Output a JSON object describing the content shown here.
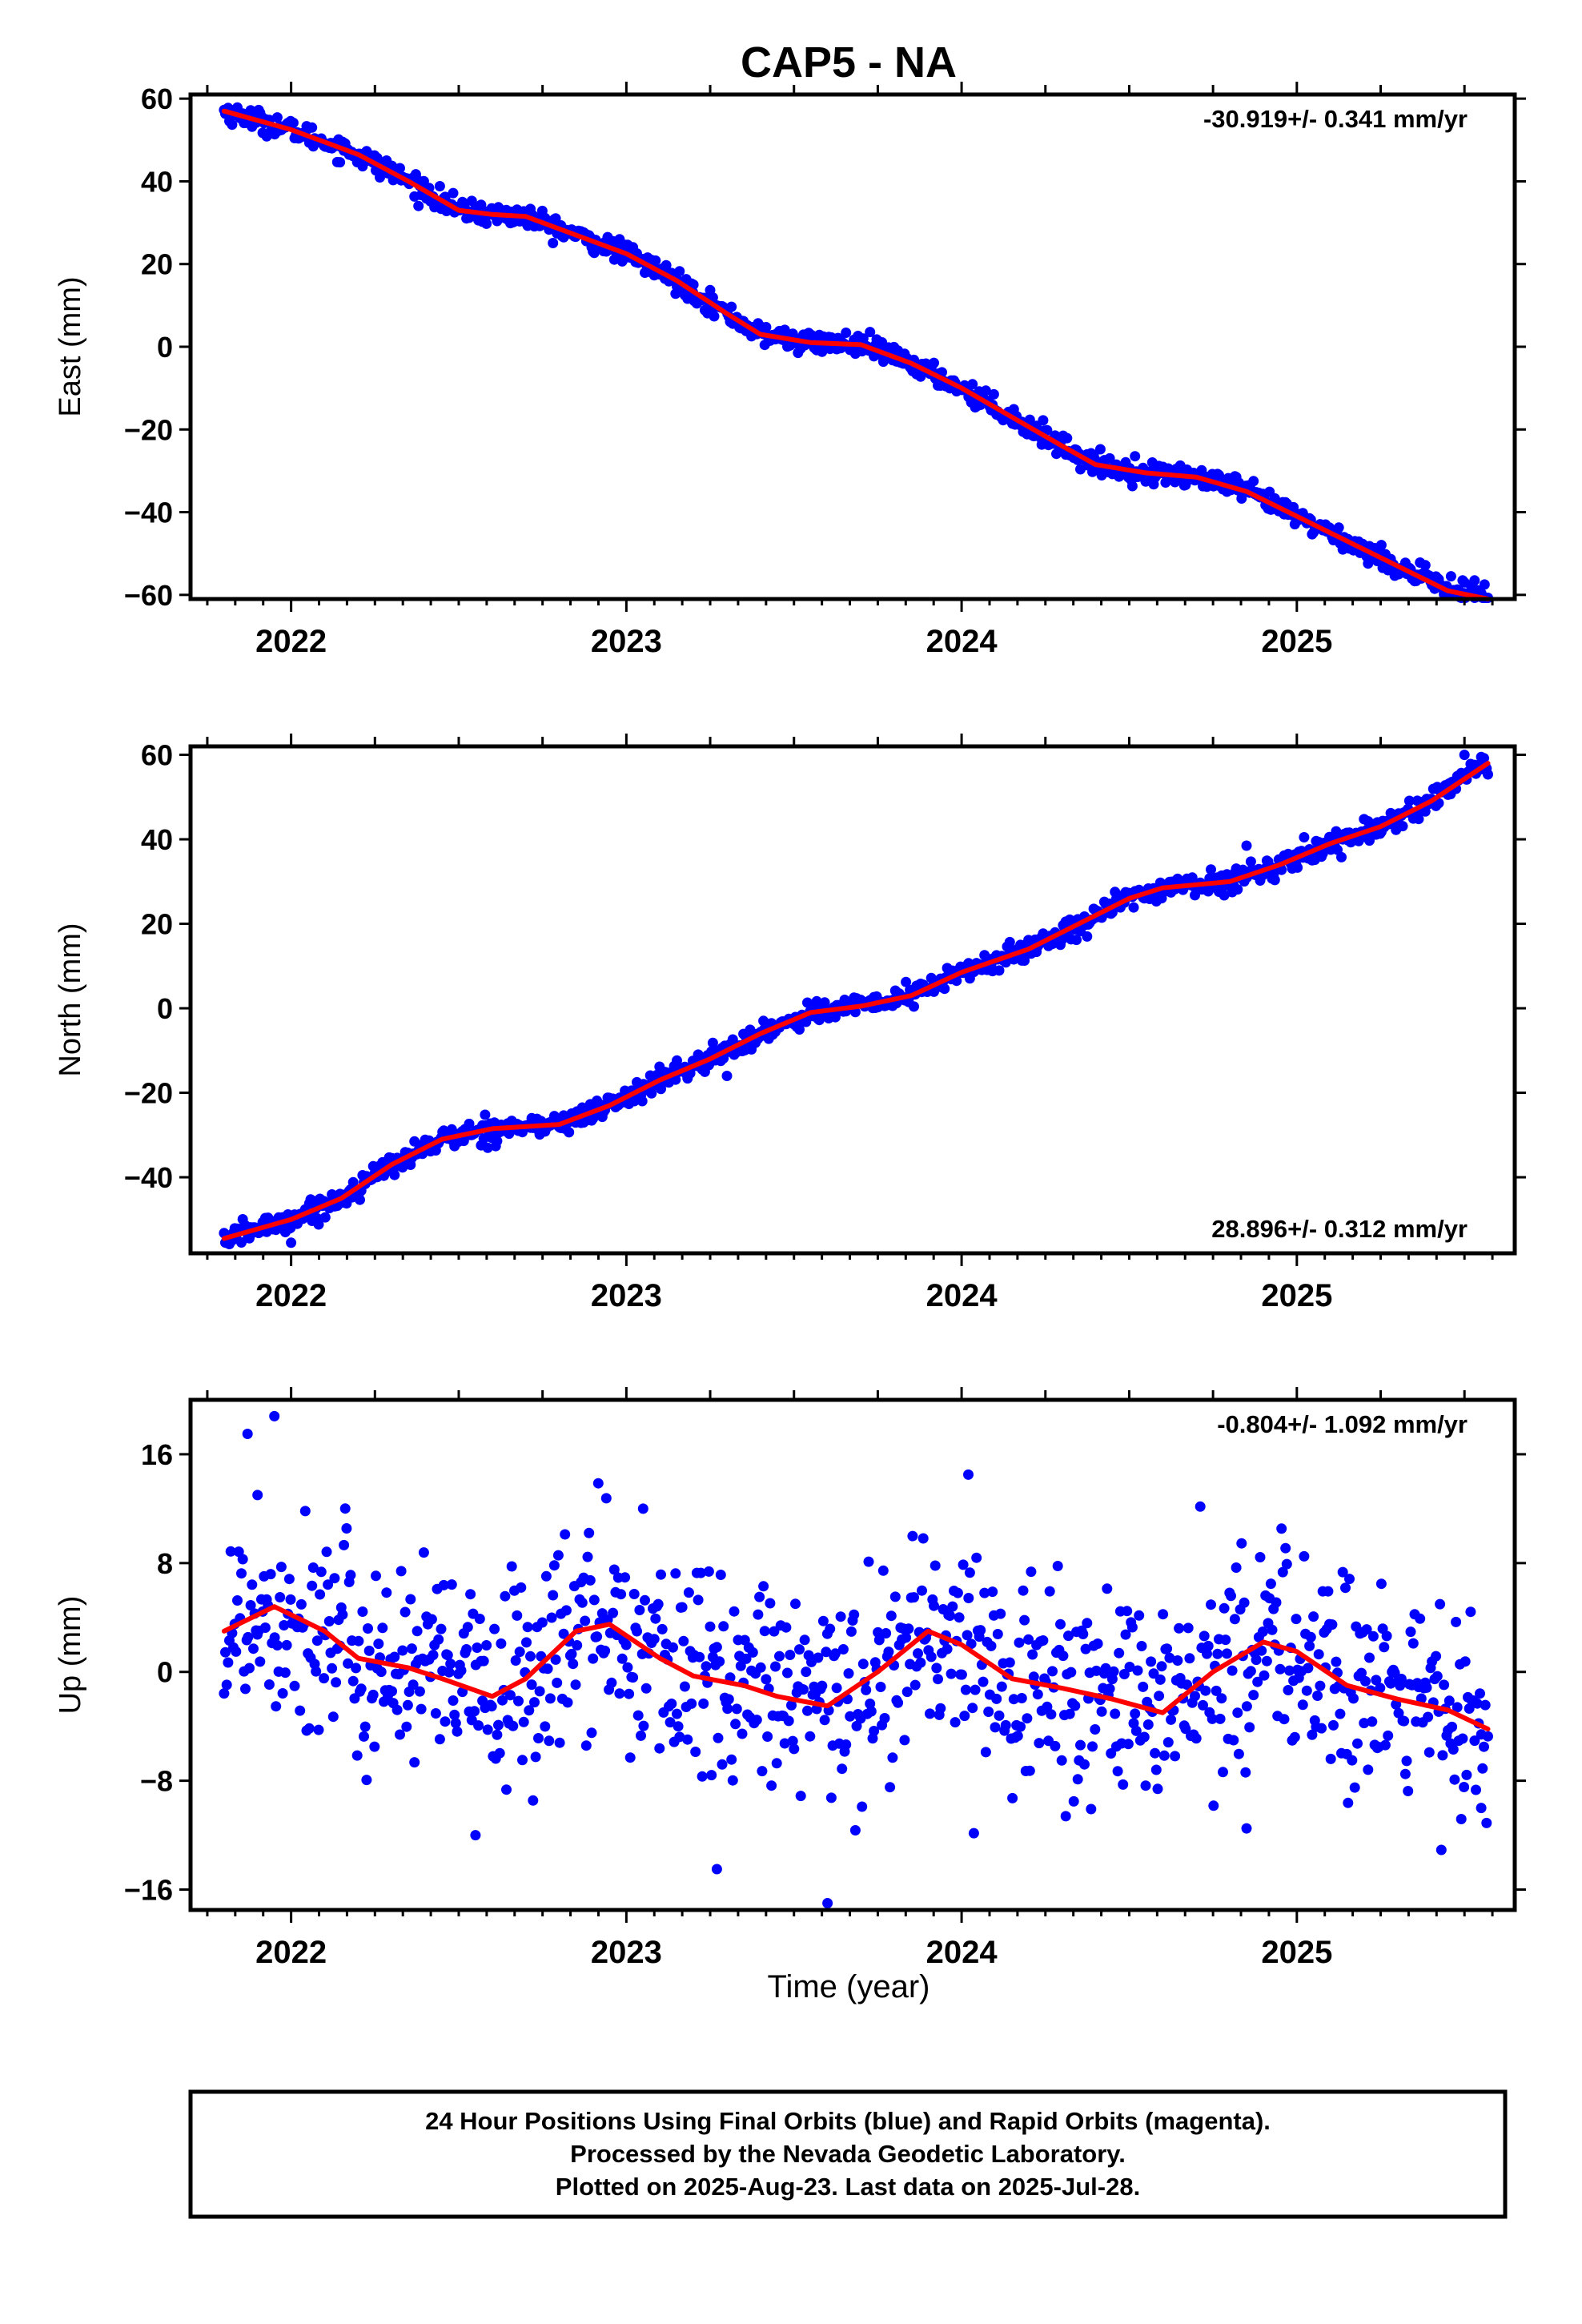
{
  "title": "CAP5 - NA",
  "xlabel": "Time (year)",
  "footer": [
    "24 Hour Positions Using Final Orbits (blue) and Rapid Orbits (magenta).",
    "Processed by the Nevada Geodetic Laboratory.",
    "Plotted on 2025-Aug-23. Last data on 2025-Jul-28."
  ],
  "colors": {
    "points": "#0000ff",
    "fit": "#ff0000",
    "frame": "#000000"
  },
  "chart_data": [
    {
      "type": "scatter",
      "ylabel": "East (mm)",
      "rate_label": "-30.919+/- 0.341 mm/yr",
      "rate_position": "top-right",
      "xlim": [
        2021.7,
        2025.65
      ],
      "ylim": [
        -61,
        61
      ],
      "yticks": [
        -60,
        -40,
        -20,
        0,
        20,
        40,
        60
      ],
      "ytick_labels": [
        "−60",
        "−40",
        "−20",
        "0",
        "20",
        "40",
        "60"
      ],
      "xticks": [
        2022,
        2023,
        2024,
        2025
      ],
      "xtick_labels": [
        "2022",
        "2023",
        "2024",
        "2025"
      ],
      "x_range": [
        2021.8,
        2025.57
      ],
      "scatter_sd": 1.3,
      "fit_points": [
        [
          2021.8,
          57
        ],
        [
          2022.0,
          52.5
        ],
        [
          2022.2,
          46.5
        ],
        [
          2022.35,
          40
        ],
        [
          2022.5,
          33
        ],
        [
          2022.6,
          32
        ],
        [
          2022.7,
          31.5
        ],
        [
          2022.85,
          27
        ],
        [
          2023.0,
          22.5
        ],
        [
          2023.15,
          16
        ],
        [
          2023.3,
          8
        ],
        [
          2023.4,
          3
        ],
        [
          2023.55,
          1
        ],
        [
          2023.7,
          0.5
        ],
        [
          2023.85,
          -4
        ],
        [
          2024.0,
          -10
        ],
        [
          2024.15,
          -17
        ],
        [
          2024.3,
          -24
        ],
        [
          2024.4,
          -28.5
        ],
        [
          2024.55,
          -30.5
        ],
        [
          2024.7,
          -31.5
        ],
        [
          2024.85,
          -35
        ],
        [
          2025.0,
          -41
        ],
        [
          2025.15,
          -47
        ],
        [
          2025.3,
          -53
        ],
        [
          2025.45,
          -59
        ],
        [
          2025.57,
          -61
        ]
      ],
      "outliers": [
        [
          2025.42,
          -56
        ],
        [
          2025.46,
          -55.5
        ],
        [
          2025.5,
          -57
        ],
        [
          2025.53,
          -56.5
        ],
        [
          2025.56,
          -57.5
        ],
        [
          2024.82,
          -34
        ],
        [
          2022.55,
          33.5
        ],
        [
          2023.2,
          15
        ]
      ]
    },
    {
      "type": "scatter",
      "ylabel": "North (mm)",
      "rate_label": "28.896+/- 0.312 mm/yr",
      "rate_position": "bottom-right",
      "xlim": [
        2021.7,
        2025.65
      ],
      "ylim": [
        -58,
        62
      ],
      "yticks": [
        -40,
        -20,
        0,
        20,
        40,
        60
      ],
      "ytick_labels": [
        "−40",
        "−20",
        "0",
        "20",
        "40",
        "60"
      ],
      "xticks": [
        2022,
        2023,
        2024,
        2025
      ],
      "xtick_labels": [
        "2022",
        "2023",
        "2024",
        "2025"
      ],
      "x_range": [
        2021.8,
        2025.57
      ],
      "scatter_sd": 1.3,
      "fit_points": [
        [
          2021.8,
          -54.5
        ],
        [
          2022.0,
          -50
        ],
        [
          2022.15,
          -45
        ],
        [
          2022.3,
          -37
        ],
        [
          2022.45,
          -31
        ],
        [
          2022.6,
          -28.5
        ],
        [
          2022.8,
          -27.5
        ],
        [
          2022.95,
          -23
        ],
        [
          2023.1,
          -17
        ],
        [
          2023.25,
          -12
        ],
        [
          2023.4,
          -6
        ],
        [
          2023.55,
          -1
        ],
        [
          2023.7,
          0.5
        ],
        [
          2023.85,
          3
        ],
        [
          2024.0,
          8.5
        ],
        [
          2024.2,
          14
        ],
        [
          2024.35,
          20
        ],
        [
          2024.5,
          26
        ],
        [
          2024.6,
          28.5
        ],
        [
          2024.8,
          30
        ],
        [
          2024.95,
          34
        ],
        [
          2025.1,
          39
        ],
        [
          2025.25,
          43
        ],
        [
          2025.4,
          49
        ],
        [
          2025.57,
          58
        ]
      ],
      "outliers": [
        [
          2022.0,
          -55.5
        ],
        [
          2023.3,
          -16
        ],
        [
          2024.85,
          38.5
        ],
        [
          2025.5,
          60
        ],
        [
          2025.55,
          59.5
        ],
        [
          2024.1,
          12
        ]
      ]
    },
    {
      "type": "scatter",
      "ylabel": "Up (mm)",
      "rate_label": "-0.804+/- 1.092 mm/yr",
      "rate_position": "top-right",
      "xlim": [
        2021.7,
        2025.65
      ],
      "ylim": [
        -17.5,
        20
      ],
      "yticks": [
        -16,
        -8,
        0,
        8,
        16
      ],
      "ytick_labels": [
        "−16",
        "−8",
        "0",
        "8",
        "16"
      ],
      "xticks": [
        2022,
        2023,
        2024,
        2025
      ],
      "xtick_labels": [
        "2022",
        "2023",
        "2024",
        "2025"
      ],
      "x_range": [
        2021.8,
        2025.57
      ],
      "scatter_sd": 4.0,
      "fit_points": [
        [
          2021.8,
          3
        ],
        [
          2021.95,
          4.8
        ],
        [
          2022.1,
          3
        ],
        [
          2022.2,
          1
        ],
        [
          2022.35,
          0.3
        ],
        [
          2022.45,
          -0.5
        ],
        [
          2022.6,
          -1.8
        ],
        [
          2022.7,
          -0.5
        ],
        [
          2022.85,
          3
        ],
        [
          2022.95,
          3.5
        ],
        [
          2023.1,
          1
        ],
        [
          2023.2,
          -0.3
        ],
        [
          2023.35,
          -1
        ],
        [
          2023.45,
          -1.8
        ],
        [
          2023.6,
          -2.5
        ],
        [
          2023.75,
          0
        ],
        [
          2023.9,
          3
        ],
        [
          2024.0,
          2
        ],
        [
          2024.15,
          -0.5
        ],
        [
          2024.3,
          -1.2
        ],
        [
          2024.45,
          -2
        ],
        [
          2024.6,
          -3
        ],
        [
          2024.75,
          0
        ],
        [
          2024.9,
          2.2
        ],
        [
          2025.0,
          1.5
        ],
        [
          2025.15,
          -1
        ],
        [
          2025.3,
          -2
        ],
        [
          2025.45,
          -2.8
        ],
        [
          2025.57,
          -4.2
        ]
      ],
      "outliers": [
        [
          2021.87,
          17.5
        ],
        [
          2021.95,
          18.8
        ],
        [
          2021.9,
          13
        ],
        [
          2023.05,
          12
        ],
        [
          2024.02,
          14.5
        ],
        [
          2023.6,
          -17
        ],
        [
          2023.27,
          -14.5
        ],
        [
          2022.55,
          -12
        ],
        [
          2025.55,
          -10
        ],
        [
          2024.85,
          -11.5
        ]
      ]
    }
  ]
}
